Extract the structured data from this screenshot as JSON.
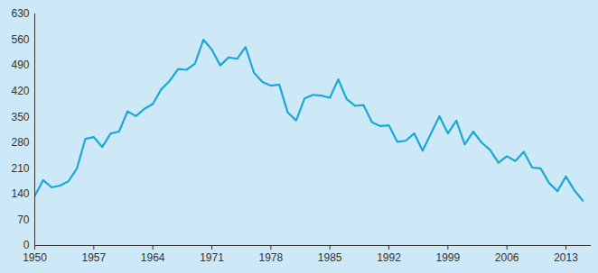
{
  "chart_data": {
    "type": "line",
    "x": [
      1950,
      1951,
      1952,
      1953,
      1954,
      1955,
      1956,
      1957,
      1958,
      1959,
      1960,
      1961,
      1962,
      1963,
      1964,
      1965,
      1966,
      1967,
      1968,
      1969,
      1970,
      1971,
      1972,
      1973,
      1974,
      1975,
      1976,
      1977,
      1978,
      1979,
      1980,
      1981,
      1982,
      1983,
      1984,
      1985,
      1986,
      1987,
      1988,
      1989,
      1990,
      1991,
      1992,
      1993,
      1994,
      1995,
      1996,
      1997,
      1998,
      1999,
      2000,
      2001,
      2002,
      2003,
      2004,
      2005,
      2006,
      2007,
      2008,
      2009,
      2010,
      2011,
      2012,
      2013,
      2014,
      2015
    ],
    "values": [
      135,
      178,
      158,
      163,
      175,
      210,
      290,
      295,
      268,
      305,
      310,
      365,
      352,
      372,
      385,
      425,
      448,
      480,
      478,
      495,
      560,
      533,
      490,
      512,
      508,
      540,
      470,
      445,
      435,
      438,
      362,
      340,
      400,
      410,
      408,
      402,
      452,
      398,
      380,
      382,
      335,
      325,
      327,
      282,
      285,
      305,
      258,
      305,
      352,
      305,
      340,
      275,
      310,
      280,
      260,
      225,
      243,
      230,
      255,
      212,
      210,
      170,
      148,
      188,
      150,
      122
    ],
    "color": "#1ba8d8",
    "xlim": [
      1950,
      2016
    ],
    "xticks": [
      1950,
      1957,
      1964,
      1971,
      1978,
      1985,
      1992,
      1999,
      2006,
      2013
    ],
    "ylim": [
      0,
      630
    ],
    "yticks": [
      0,
      70,
      140,
      210,
      280,
      350,
      420,
      490,
      560,
      630
    ],
    "grid": false
  }
}
